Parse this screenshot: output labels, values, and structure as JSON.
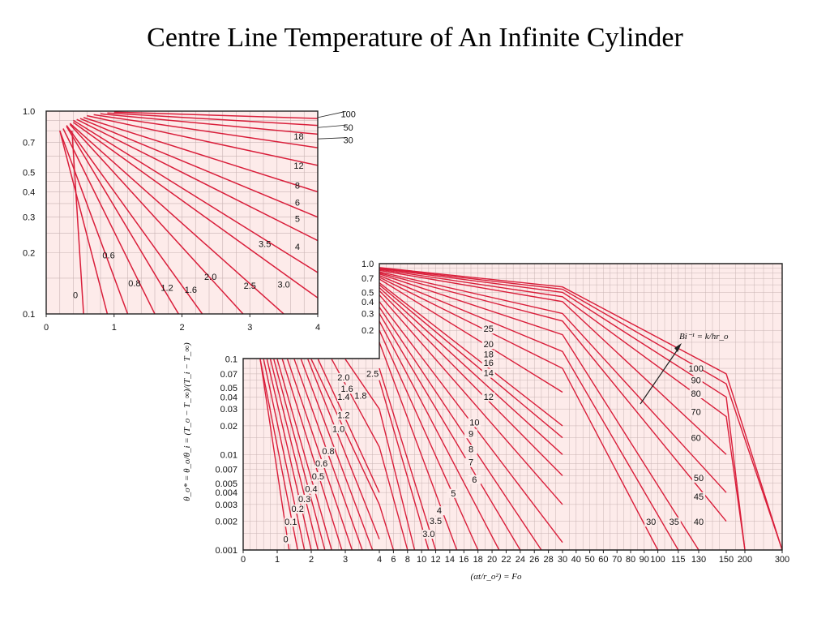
{
  "slide": {
    "title": "Centre Line Temperature of An Infinite Cylinder"
  },
  "colors": {
    "background": "#fdebea",
    "grid": "#c9b4b4",
    "curve": "#d91e3a",
    "frame": "#222222"
  },
  "chart_data": [
    {
      "type": "line",
      "scale": {
        "x": "linear",
        "y": "log"
      },
      "grid": true,
      "xlim": [
        0,
        4
      ],
      "ylim": [
        0.1,
        1.0
      ],
      "x_ticks": [
        "0",
        "1",
        "2",
        "3",
        "4"
      ],
      "y_ticks": [
        "1.0",
        "0.7",
        "0.5",
        "0.4",
        "0.3",
        "0.2",
        "0.1"
      ],
      "curve_labels": [
        "100",
        "50",
        "30",
        "18",
        "12",
        "8",
        "6",
        "5",
        "4",
        "3.5",
        "3.0",
        "2.5",
        "2.0",
        "1.6",
        "1.2",
        "0.8",
        "0.6",
        "0"
      ],
      "series": [
        {
          "name": "0",
          "x": [
            0.38,
            0.55
          ],
          "y": [
            0.8,
            0.1
          ]
        },
        {
          "name": "0.6",
          "x": [
            0.2,
            0.9
          ],
          "y": [
            0.8,
            0.1
          ]
        },
        {
          "name": "0.8",
          "x": [
            0.2,
            1.2
          ],
          "y": [
            0.8,
            0.1
          ]
        },
        {
          "name": "1.2",
          "x": [
            0.25,
            1.6
          ],
          "y": [
            0.82,
            0.1
          ]
        },
        {
          "name": "1.6",
          "x": [
            0.3,
            1.95
          ],
          "y": [
            0.84,
            0.1
          ]
        },
        {
          "name": "2.0",
          "x": [
            0.3,
            2.3
          ],
          "y": [
            0.85,
            0.1
          ]
        },
        {
          "name": "2.5",
          "x": [
            0.35,
            2.9
          ],
          "y": [
            0.86,
            0.1
          ]
        },
        {
          "name": "3.0",
          "x": [
            0.35,
            3.5
          ],
          "y": [
            0.87,
            0.1
          ]
        },
        {
          "name": "3.5",
          "x": [
            0.4,
            4.0
          ],
          "y": [
            0.88,
            0.12
          ]
        },
        {
          "name": "4",
          "x": [
            0.4,
            4.0
          ],
          "y": [
            0.9,
            0.16
          ]
        },
        {
          "name": "5",
          "x": [
            0.45,
            4.0
          ],
          "y": [
            0.91,
            0.23
          ]
        },
        {
          "name": "6",
          "x": [
            0.5,
            4.0
          ],
          "y": [
            0.92,
            0.3
          ]
        },
        {
          "name": "8",
          "x": [
            0.55,
            4.0
          ],
          "y": [
            0.93,
            0.4
          ]
        },
        {
          "name": "12",
          "x": [
            0.6,
            4.0
          ],
          "y": [
            0.95,
            0.54
          ]
        },
        {
          "name": "18",
          "x": [
            0.7,
            4.0
          ],
          "y": [
            0.96,
            0.66
          ]
        },
        {
          "name": "30",
          "x": [
            0.8,
            4.0
          ],
          "y": [
            0.97,
            0.77
          ]
        },
        {
          "name": "50",
          "x": [
            0.9,
            4.0
          ],
          "y": [
            0.98,
            0.85
          ]
        },
        {
          "name": "100",
          "x": [
            1.0,
            4.0
          ],
          "y": [
            0.99,
            0.92
          ]
        }
      ]
    },
    {
      "type": "line",
      "scale": {
        "x": "piecewise-linear",
        "y": "log"
      },
      "grid": true,
      "xlim": [
        0,
        300
      ],
      "ylim": [
        0.001,
        1.0
      ],
      "x_ticks": [
        "0",
        "1",
        "2",
        "3",
        "4",
        "6",
        "8",
        "10",
        "12",
        "14",
        "16",
        "18",
        "20",
        "22",
        "24",
        "26",
        "28",
        "30",
        "40",
        "50",
        "60",
        "70",
        "80",
        "90",
        "100",
        "115",
        "130",
        "150",
        "200",
        "300"
      ],
      "y_ticks": [
        "1.0",
        "0.7",
        "0.5",
        "0.4",
        "0.3",
        "0.2",
        "0.1",
        "0.07",
        "0.05",
        "0.04",
        "0.03",
        "0.02",
        "0.01",
        "0.007",
        "0.005",
        "0.004",
        "0.003",
        "0.002",
        "0.001"
      ],
      "xlabel": "(αt/r_o²) = Fo",
      "ylabel": "θ_o* = θ_o/θ_i = (T_o − T_∞)/(T_i − T_∞)",
      "annotation": "Bi⁻¹ = k/hr_o",
      "curve_labels": [
        "0",
        "0.1",
        "0.2",
        "0.3",
        "0.4",
        "0.5",
        "0.6",
        "0.8",
        "1.0",
        "1.2",
        "1.4",
        "1.6",
        "1.8",
        "2.0",
        "2.5",
        "3.0",
        "3.5",
        "4",
        "5",
        "6",
        "7",
        "8",
        "9",
        "10",
        "12",
        "14",
        "16",
        "18",
        "20",
        "25",
        "30",
        "35",
        "40",
        "45",
        "50",
        "60",
        "70",
        "80",
        "90",
        "100"
      ],
      "series": [
        {
          "name": "0",
          "x": [
            0.5,
            1.35
          ],
          "y": [
            0.1,
            0.001
          ]
        },
        {
          "name": "0.1",
          "x": [
            0.5,
            1.6
          ],
          "y": [
            0.1,
            0.001
          ]
        },
        {
          "name": "0.2",
          "x": [
            0.6,
            1.8
          ],
          "y": [
            0.1,
            0.001
          ]
        },
        {
          "name": "0.3",
          "x": [
            0.7,
            2.0
          ],
          "y": [
            0.1,
            0.001
          ]
        },
        {
          "name": "0.4",
          "x": [
            0.8,
            2.2
          ],
          "y": [
            0.1,
            0.001
          ]
        },
        {
          "name": "0.5",
          "x": [
            0.9,
            2.4
          ],
          "y": [
            0.1,
            0.001
          ]
        },
        {
          "name": "0.6",
          "x": [
            1.0,
            2.6
          ],
          "y": [
            0.1,
            0.001
          ]
        },
        {
          "name": "0.8",
          "x": [
            1.15,
            2.9
          ],
          "y": [
            0.1,
            0.001
          ]
        },
        {
          "name": "1.0",
          "x": [
            1.3,
            3.2
          ],
          "y": [
            0.1,
            0.001
          ]
        },
        {
          "name": "1.2",
          "x": [
            1.5,
            3.5
          ],
          "y": [
            0.1,
            0.001
          ]
        },
        {
          "name": "1.4",
          "x": [
            1.7,
            3.8
          ],
          "y": [
            0.1,
            0.001
          ]
        },
        {
          "name": "1.6",
          "x": [
            1.9,
            4.0
          ],
          "y": [
            0.1,
            0.0013
          ]
        },
        {
          "name": "1.8",
          "x": [
            2.2,
            4.0
          ],
          "y": [
            0.1,
            0.004
          ]
        },
        {
          "name": "2.0",
          "x": [
            2.0,
            4.0,
            6.0
          ],
          "y": [
            0.1,
            0.003,
            0.001
          ]
        },
        {
          "name": "2.5",
          "x": [
            2.6,
            4.0,
            8.0
          ],
          "y": [
            0.1,
            0.012,
            0.001
          ]
        },
        {
          "name": "3.0",
          "x": [
            3.0,
            4.0,
            9.0
          ],
          "y": [
            0.1,
            0.03,
            0.001
          ]
        },
        {
          "name": "3.5",
          "x": [
            4.0,
            11.0
          ],
          "y": [
            0.06,
            0.001
          ]
        },
        {
          "name": "4",
          "x": [
            4.0,
            12.0
          ],
          "y": [
            0.08,
            0.001
          ]
        },
        {
          "name": "5",
          "x": [
            4.0,
            15.0
          ],
          "y": [
            0.15,
            0.001
          ]
        },
        {
          "name": "6",
          "x": [
            4.0,
            18.0
          ],
          "y": [
            0.2,
            0.001
          ]
        },
        {
          "name": "7",
          "x": [
            4.0,
            21.0
          ],
          "y": [
            0.25,
            0.001
          ]
        },
        {
          "name": "8",
          "x": [
            4.0,
            24.0
          ],
          "y": [
            0.3,
            0.001
          ]
        },
        {
          "name": "9",
          "x": [
            4.0,
            27.0
          ],
          "y": [
            0.35,
            0.001
          ]
        },
        {
          "name": "10",
          "x": [
            4.0,
            30.0
          ],
          "y": [
            0.4,
            0.0012
          ]
        },
        {
          "name": "12",
          "x": [
            4.0,
            30.0
          ],
          "y": [
            0.47,
            0.003
          ]
        },
        {
          "name": "14",
          "x": [
            4.0,
            30.0
          ],
          "y": [
            0.52,
            0.006
          ]
        },
        {
          "name": "16",
          "x": [
            4.0,
            30.0
          ],
          "y": [
            0.56,
            0.01
          ]
        },
        {
          "name": "18",
          "x": [
            4.0,
            30.0
          ],
          "y": [
            0.6,
            0.015
          ]
        },
        {
          "name": "20",
          "x": [
            4.0,
            30.0
          ],
          "y": [
            0.63,
            0.02
          ]
        },
        {
          "name": "25",
          "x": [
            4.0,
            30.0
          ],
          "y": [
            0.69,
            0.045
          ]
        },
        {
          "name": "30",
          "x": [
            4.0,
            30.0,
            100.0
          ],
          "y": [
            0.72,
            0.08,
            0.001
          ]
        },
        {
          "name": "35",
          "x": [
            4.0,
            30.0,
            115.0
          ],
          "y": [
            0.75,
            0.12,
            0.001
          ]
        },
        {
          "name": "40",
          "x": [
            4.0,
            30.0,
            130.0
          ],
          "y": [
            0.78,
            0.18,
            0.001
          ]
        },
        {
          "name": "45",
          "x": [
            4.0,
            30.0,
            150.0
          ],
          "y": [
            0.8,
            0.25,
            0.002
          ]
        },
        {
          "name": "50",
          "x": [
            4.0,
            30.0,
            150.0
          ],
          "y": [
            0.82,
            0.3,
            0.004
          ]
        },
        {
          "name": "60",
          "x": [
            4.0,
            30.0,
            150.0
          ],
          "y": [
            0.85,
            0.4,
            0.01
          ]
        },
        {
          "name": "70",
          "x": [
            4.0,
            30.0,
            150.0,
            200.0
          ],
          "y": [
            0.87,
            0.45,
            0.025,
            0.001
          ]
        },
        {
          "name": "80",
          "x": [
            4.0,
            30.0,
            150.0,
            200.0
          ],
          "y": [
            0.89,
            0.5,
            0.04,
            0.001
          ]
        },
        {
          "name": "90",
          "x": [
            4.0,
            30.0,
            150.0,
            300.0
          ],
          "y": [
            0.9,
            0.54,
            0.055,
            0.001
          ]
        },
        {
          "name": "100",
          "x": [
            4.0,
            30.0,
            150.0,
            300.0
          ],
          "y": [
            0.91,
            0.57,
            0.07,
            0.001
          ]
        }
      ]
    }
  ]
}
